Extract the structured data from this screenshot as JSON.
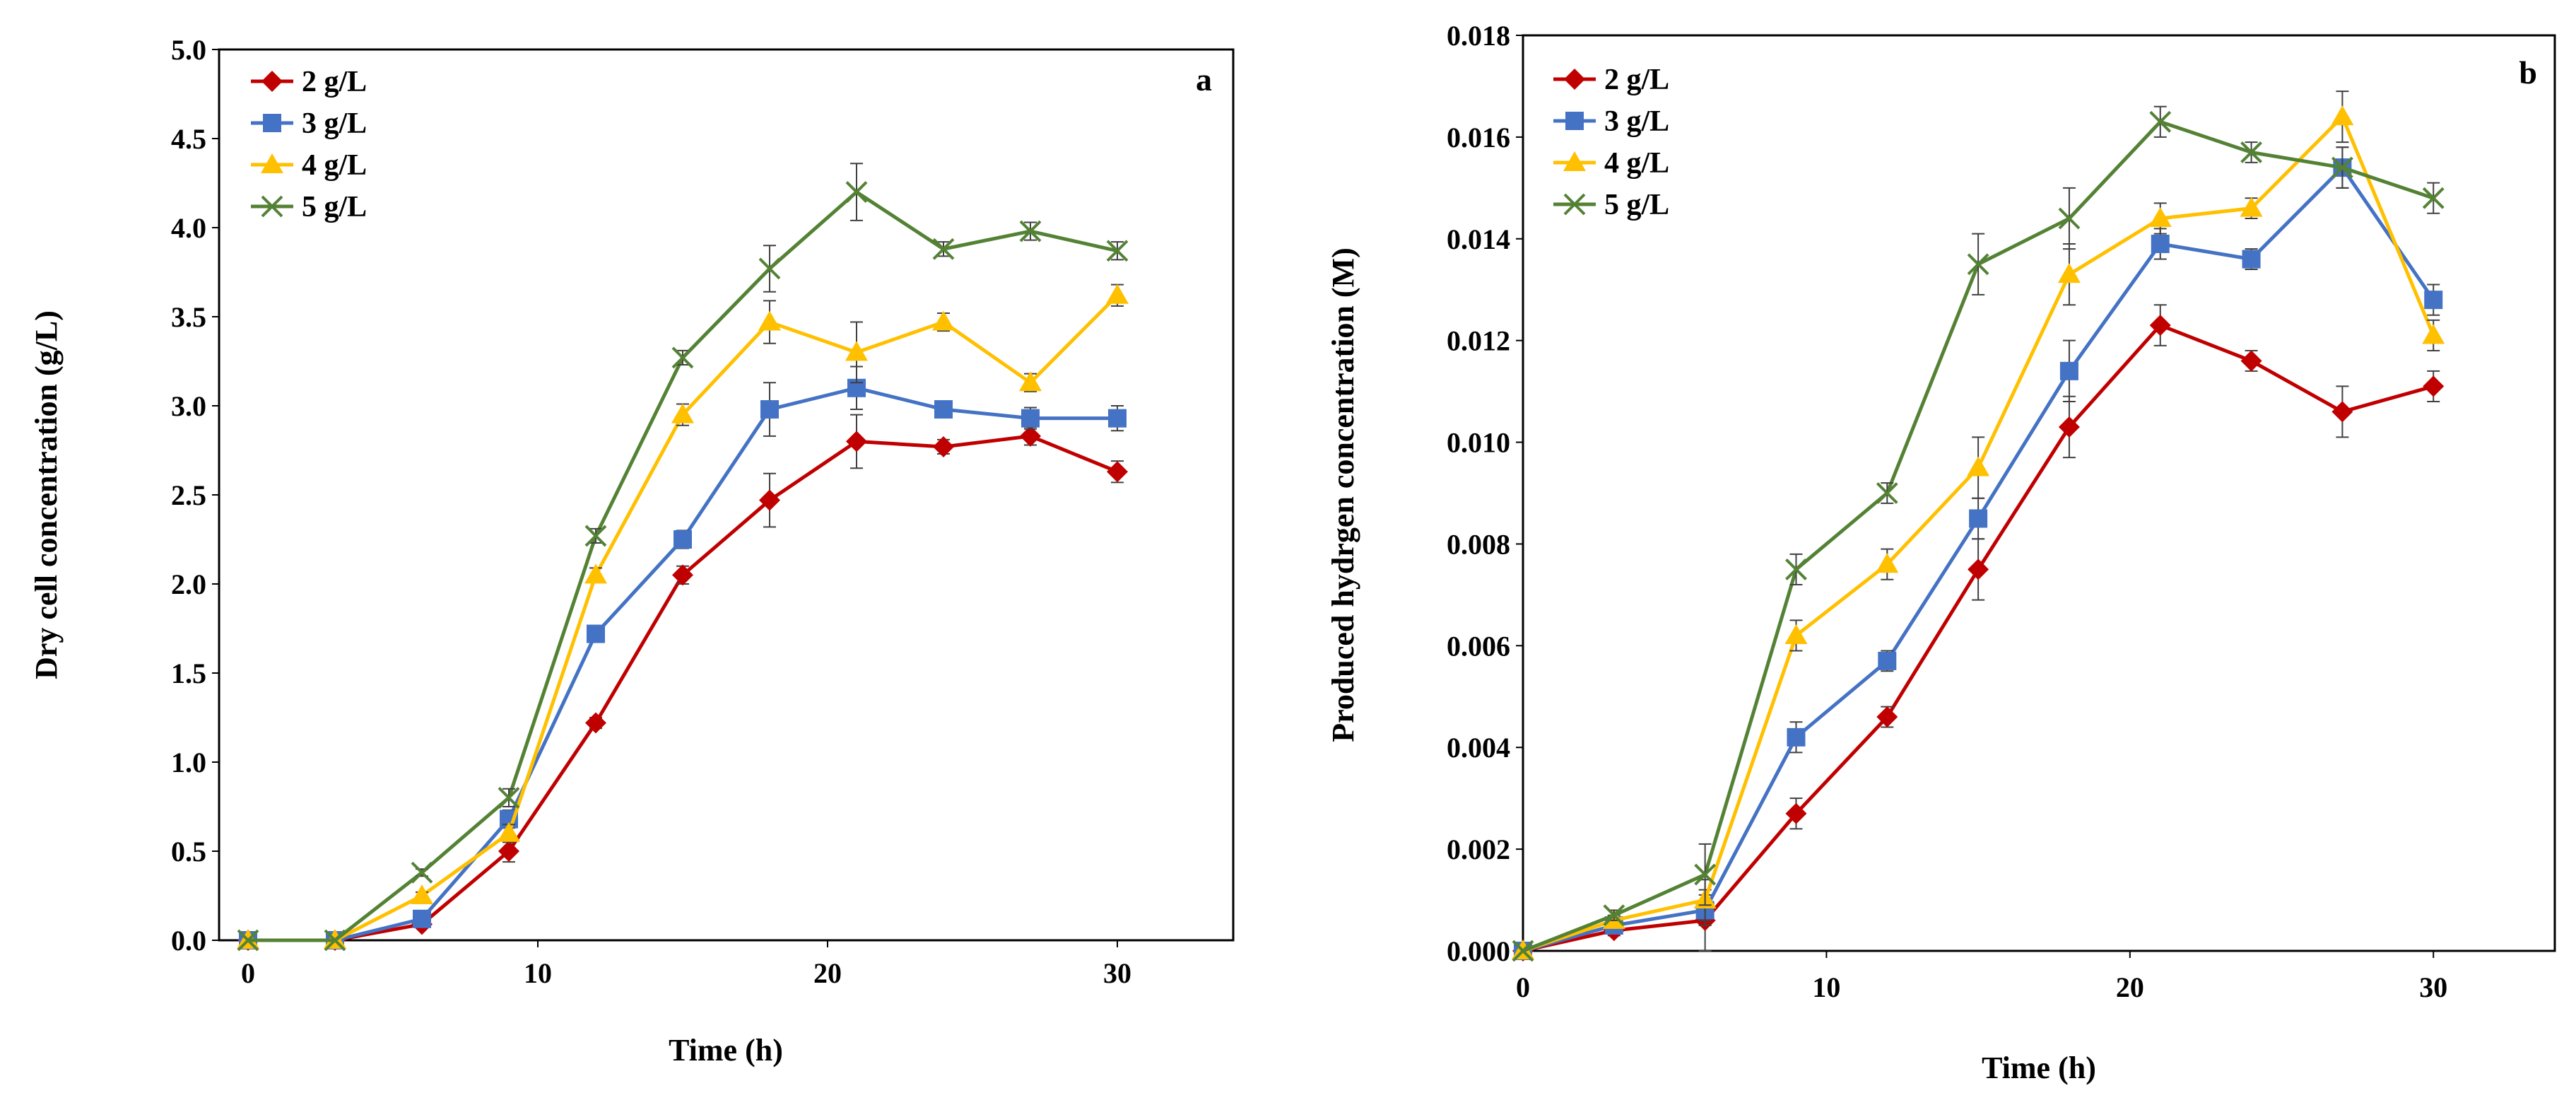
{
  "chart_data": [
    {
      "type": "line",
      "panel_label": "a",
      "xlabel": "Time (h)",
      "ylabel": "Dry cell concentration (g/L)",
      "xlim": [
        -1,
        34
      ],
      "ylim": [
        0,
        5.0
      ],
      "x_ticks": [
        0,
        10,
        20,
        30
      ],
      "x_tick_labels": [
        "0",
        "10",
        "20",
        "30"
      ],
      "y_ticks": [
        0,
        0.5,
        1.0,
        1.5,
        2.0,
        2.5,
        3.0,
        3.5,
        4.0,
        4.5,
        5.0
      ],
      "y_tick_labels": [
        "0.0",
        "0.5",
        "1.0",
        "1.5",
        "2.0",
        "2.5",
        "3.0",
        "3.5",
        "4.0",
        "4.5",
        "5.0"
      ],
      "legend_position": "top-left",
      "x": [
        0,
        3,
        6,
        9,
        12,
        15,
        18,
        21,
        24,
        27,
        30
      ],
      "series": [
        {
          "name": "2 g/L",
          "color": "#C00000",
          "marker": "diamond",
          "values": [
            0,
            0,
            0.09,
            0.5,
            1.22,
            2.05,
            2.47,
            2.8,
            2.77,
            2.83,
            2.63
          ],
          "errors": [
            0,
            0,
            0.02,
            0.06,
            0.03,
            0.05,
            0.15,
            0.15,
            0.04,
            0.05,
            0.06
          ]
        },
        {
          "name": "3 g/L",
          "color": "#4472C4",
          "marker": "square",
          "values": [
            0,
            0,
            0.12,
            0.68,
            1.72,
            2.25,
            2.98,
            3.1,
            2.98,
            2.93,
            2.93
          ],
          "errors": [
            0,
            0,
            0.02,
            0.05,
            0.03,
            0.05,
            0.15,
            0.12,
            0.03,
            0.06,
            0.07
          ]
        },
        {
          "name": "4 g/L",
          "color": "#FFC000",
          "marker": "triangle",
          "values": [
            0,
            0,
            0.25,
            0.6,
            2.05,
            2.95,
            3.47,
            3.3,
            3.47,
            3.13,
            3.62
          ],
          "errors": [
            0,
            0,
            0.02,
            0.05,
            0.04,
            0.06,
            0.12,
            0.17,
            0.05,
            0.05,
            0.06
          ]
        },
        {
          "name": "5 g/L",
          "color": "#548235",
          "marker": "x",
          "values": [
            0,
            0,
            0.38,
            0.8,
            2.27,
            3.27,
            3.77,
            4.2,
            3.88,
            3.98,
            3.87
          ],
          "errors": [
            0,
            0,
            0.02,
            0.05,
            0.04,
            0.04,
            0.13,
            0.16,
            0.04,
            0.05,
            0.05
          ]
        }
      ]
    },
    {
      "type": "line",
      "panel_label": "b",
      "xlabel": "Time (h)",
      "ylabel": "Produced hydrgen concentration (M)",
      "xlim": [
        0,
        34
      ],
      "ylim": [
        0,
        0.018
      ],
      "x_ticks": [
        0,
        10,
        20,
        30
      ],
      "x_tick_labels": [
        "0",
        "10",
        "20",
        "30"
      ],
      "y_ticks": [
        0,
        0.002,
        0.004,
        0.006,
        0.008,
        0.01,
        0.012,
        0.014,
        0.016,
        0.018
      ],
      "y_tick_labels": [
        "0.000",
        "0.002",
        "0.004",
        "0.006",
        "0.008",
        "0.010",
        "0.012",
        "0.014",
        "0.016",
        "0.018"
      ],
      "legend_position": "top-left",
      "x": [
        0,
        3,
        6,
        9,
        12,
        15,
        18,
        21,
        24,
        27,
        30
      ],
      "series": [
        {
          "name": "2 g/L",
          "color": "#C00000",
          "marker": "diamond",
          "values": [
            0,
            0.0004,
            0.0006,
            0.0027,
            0.0046,
            0.0075,
            0.0103,
            0.0123,
            0.0116,
            0.0106,
            0.0111
          ],
          "errors": [
            0,
            0.0001,
            0.0006,
            0.0003,
            0.0002,
            0.0006,
            0.0006,
            0.0004,
            0.0002,
            0.0005,
            0.0003
          ]
        },
        {
          "name": "3 g/L",
          "color": "#4472C4",
          "marker": "square",
          "values": [
            0,
            0.0005,
            0.0008,
            0.0042,
            0.0057,
            0.0085,
            0.0114,
            0.0139,
            0.0136,
            0.0154,
            0.0128
          ],
          "errors": [
            0,
            0.0001,
            0.0003,
            0.0003,
            0.0002,
            0.0004,
            0.0006,
            0.0003,
            0.0002,
            0.0004,
            0.0003
          ]
        },
        {
          "name": "4 g/L",
          "color": "#FFC000",
          "marker": "triangle",
          "values": [
            0,
            0.0006,
            0.001,
            0.0062,
            0.0076,
            0.0095,
            0.0133,
            0.0144,
            0.0146,
            0.0164,
            0.0121
          ],
          "errors": [
            0,
            0.0001,
            0.0004,
            0.0003,
            0.0003,
            0.0006,
            0.0006,
            0.0003,
            0.0002,
            0.0005,
            0.0003
          ]
        },
        {
          "name": "5 g/L",
          "color": "#548235",
          "marker": "x",
          "values": [
            0,
            0.0007,
            0.0015,
            0.0075,
            0.009,
            0.0135,
            0.0144,
            0.0163,
            0.0157,
            0.0154,
            0.0148
          ],
          "errors": [
            0,
            0.0001,
            0.0006,
            0.0003,
            0.0002,
            0.0006,
            0.0006,
            0.0003,
            0.0002,
            0.0004,
            0.0003
          ]
        }
      ]
    }
  ]
}
